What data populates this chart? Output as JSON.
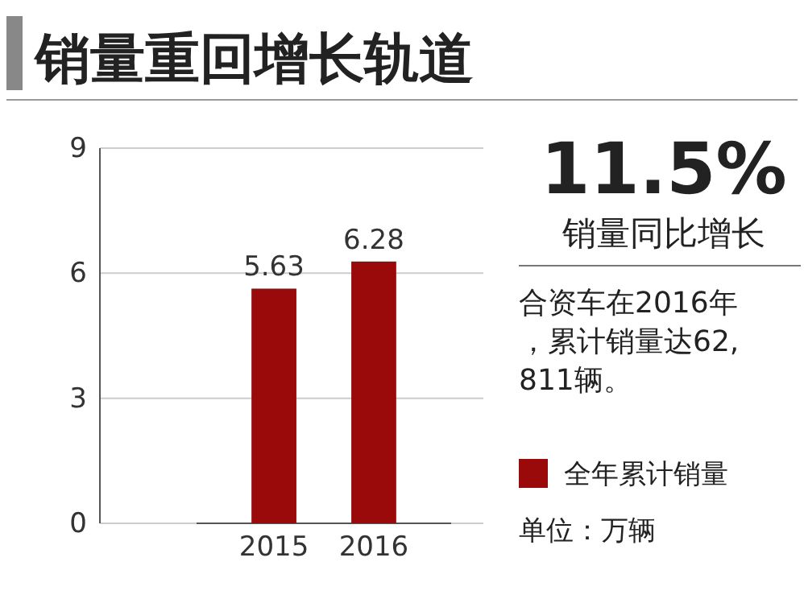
{
  "chart_data": {
    "type": "bar",
    "title": "销量重回增长轨道",
    "categories": [
      "2015",
      "2016"
    ],
    "series": [
      {
        "name": "全年累计销量",
        "color": "#9b0a0a",
        "values": [
          5.63,
          6.28
        ]
      }
    ],
    "ylim": [
      0,
      9
    ],
    "yticks": [
      0,
      3,
      6,
      9
    ],
    "grid": "y",
    "data_labels": true,
    "legend": "right",
    "annotations": [
      "11.5%",
      "销量同比增长",
      "合资车在2016年，累计销量达62,811辆。",
      "单位：万辆"
    ]
  }
}
